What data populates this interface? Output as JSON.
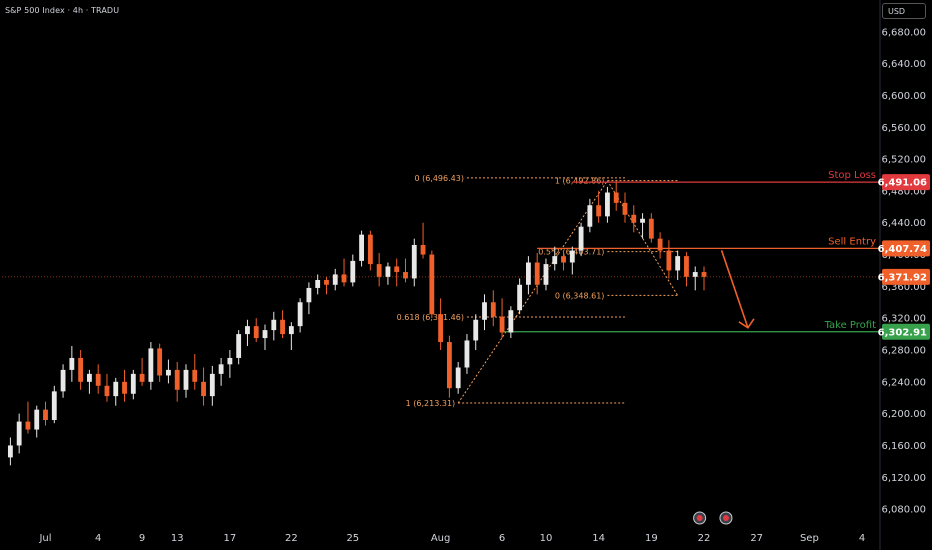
{
  "header": {
    "title": "S&P 500 Index · 4h · TRADU",
    "currency": "USD"
  },
  "colors": {
    "bg": "#000000",
    "up": "#e8e8e8",
    "down": "#f0602a",
    "stop": "#e03a3e",
    "entry": "#f0602a",
    "target": "#37a24b",
    "fib": "#f0a060",
    "axis_text": "#d1d4dc",
    "current": "#f0602a"
  },
  "chart_data": {
    "type": "candlestick",
    "y_range": [
      6060,
      6720
    ],
    "y_ticks": [
      "6,680.00",
      "6,640.00",
      "6,600.00",
      "6,560.00",
      "6,520.00",
      "6,480.00",
      "6,440.00",
      "6,400.00",
      "6,360.00",
      "6,320.00",
      "6,280.00",
      "6,240.00",
      "6,200.00",
      "6,160.00",
      "6,120.00",
      "6,080.00"
    ],
    "y_tick_values": [
      6680,
      6640,
      6600,
      6560,
      6520,
      6480,
      6440,
      6400,
      6360,
      6320,
      6280,
      6240,
      6200,
      6160,
      6120,
      6080
    ],
    "x_ticks": [
      {
        "label": "Jul",
        "i": 4
      },
      {
        "label": "4",
        "i": 10
      },
      {
        "label": "9",
        "i": 15
      },
      {
        "label": "13",
        "i": 19
      },
      {
        "label": "17",
        "i": 25
      },
      {
        "label": "22",
        "i": 32
      },
      {
        "label": "25",
        "i": 39
      },
      {
        "label": "Aug",
        "i": 49
      },
      {
        "label": "6",
        "i": 56
      },
      {
        "label": "10",
        "i": 61
      },
      {
        "label": "14",
        "i": 67
      },
      {
        "label": "19",
        "i": 73
      },
      {
        "label": "22",
        "i": 79
      },
      {
        "label": "27",
        "i": 85
      },
      {
        "label": "Sep",
        "i": 91
      },
      {
        "label": "4",
        "i": 97
      }
    ],
    "bars_count": 100,
    "last_index": 79,
    "candles": [
      [
        0,
        6145,
        6170,
        6135,
        6160
      ],
      [
        1,
        6160,
        6200,
        6150,
        6190
      ],
      [
        2,
        6190,
        6215,
        6175,
        6180
      ],
      [
        3,
        6180,
        6210,
        6170,
        6205
      ],
      [
        4,
        6205,
        6215,
        6185,
        6192
      ],
      [
        5,
        6192,
        6235,
        6188,
        6228
      ],
      [
        6,
        6228,
        6262,
        6220,
        6255
      ],
      [
        7,
        6255,
        6285,
        6240,
        6270
      ],
      [
        8,
        6270,
        6280,
        6230,
        6240
      ],
      [
        9,
        6240,
        6255,
        6225,
        6250
      ],
      [
        10,
        6250,
        6262,
        6225,
        6235
      ],
      [
        11,
        6235,
        6250,
        6215,
        6222
      ],
      [
        12,
        6222,
        6245,
        6210,
        6240
      ],
      [
        13,
        6240,
        6255,
        6215,
        6225
      ],
      [
        14,
        6225,
        6255,
        6218,
        6250
      ],
      [
        15,
        6250,
        6270,
        6235,
        6240
      ],
      [
        16,
        6240,
        6290,
        6230,
        6282
      ],
      [
        17,
        6282,
        6288,
        6240,
        6248
      ],
      [
        18,
        6248,
        6268,
        6238,
        6255
      ],
      [
        19,
        6255,
        6265,
        6215,
        6230
      ],
      [
        20,
        6230,
        6262,
        6220,
        6255
      ],
      [
        21,
        6255,
        6275,
        6230,
        6240
      ],
      [
        22,
        6240,
        6258,
        6210,
        6222
      ],
      [
        23,
        6222,
        6260,
        6210,
        6250
      ],
      [
        24,
        6250,
        6270,
        6235,
        6262
      ],
      [
        25,
        6262,
        6280,
        6245,
        6270
      ],
      [
        26,
        6270,
        6305,
        6262,
        6300
      ],
      [
        27,
        6300,
        6318,
        6285,
        6310
      ],
      [
        28,
        6310,
        6320,
        6290,
        6295
      ],
      [
        29,
        6295,
        6312,
        6280,
        6305
      ],
      [
        30,
        6305,
        6328,
        6292,
        6318
      ],
      [
        31,
        6318,
        6330,
        6295,
        6300
      ],
      [
        32,
        6300,
        6315,
        6280,
        6310
      ],
      [
        33,
        6310,
        6345,
        6302,
        6340
      ],
      [
        34,
        6340,
        6365,
        6325,
        6358
      ],
      [
        35,
        6358,
        6375,
        6350,
        6368
      ],
      [
        36,
        6368,
        6372,
        6350,
        6362
      ],
      [
        37,
        6362,
        6382,
        6355,
        6375
      ],
      [
        38,
        6375,
        6395,
        6360,
        6365
      ],
      [
        39,
        6365,
        6400,
        6360,
        6392
      ],
      [
        40,
        6392,
        6430,
        6385,
        6425
      ],
      [
        41,
        6425,
        6430,
        6380,
        6388
      ],
      [
        42,
        6388,
        6402,
        6360,
        6372
      ],
      [
        43,
        6372,
        6390,
        6362,
        6385
      ],
      [
        44,
        6385,
        6395,
        6360,
        6378
      ],
      [
        45,
        6378,
        6395,
        6365,
        6370
      ],
      [
        46,
        6370,
        6420,
        6360,
        6412
      ],
      [
        47,
        6412,
        6440,
        6395,
        6400
      ],
      [
        48,
        6400,
        6405,
        6320,
        6325
      ],
      [
        49,
        6325,
        6345,
        6280,
        6290
      ],
      [
        50,
        6290,
        6298,
        6220,
        6232
      ],
      [
        51,
        6232,
        6265,
        6225,
        6258
      ],
      [
        52,
        6258,
        6300,
        6250,
        6292
      ],
      [
        53,
        6292,
        6325,
        6280,
        6318
      ],
      [
        54,
        6318,
        6350,
        6305,
        6340
      ],
      [
        55,
        6340,
        6355,
        6310,
        6322
      ],
      [
        56,
        6322,
        6345,
        6295,
        6302
      ],
      [
        57,
        6302,
        6335,
        6295,
        6330
      ],
      [
        58,
        6330,
        6370,
        6325,
        6362
      ],
      [
        59,
        6362,
        6398,
        6350,
        6390
      ],
      [
        60,
        6390,
        6402,
        6350,
        6362
      ],
      [
        61,
        6362,
        6395,
        6355,
        6388
      ],
      [
        62,
        6388,
        6410,
        6380,
        6398
      ],
      [
        63,
        6398,
        6405,
        6380,
        6390
      ],
      [
        64,
        6390,
        6410,
        6375,
        6405
      ],
      [
        65,
        6405,
        6440,
        6398,
        6435
      ],
      [
        66,
        6435,
        6470,
        6428,
        6462
      ],
      [
        67,
        6462,
        6480,
        6440,
        6448
      ],
      [
        68,
        6448,
        6485,
        6440,
        6478
      ],
      [
        69,
        6478,
        6492,
        6455,
        6465
      ],
      [
        70,
        6465,
        6478,
        6440,
        6450
      ],
      [
        71,
        6450,
        6462,
        6428,
        6440
      ],
      [
        72,
        6440,
        6452,
        6420,
        6445
      ],
      [
        73,
        6445,
        6452,
        6415,
        6420
      ],
      [
        74,
        6420,
        6428,
        6395,
        6405
      ],
      [
        75,
        6405,
        6418,
        6370,
        6380
      ],
      [
        76,
        6380,
        6405,
        6368,
        6398
      ],
      [
        77,
        6398,
        6403,
        6360,
        6372
      ],
      [
        78,
        6372,
        6385,
        6355,
        6378
      ],
      [
        79,
        6378,
        6385,
        6355,
        6372
      ]
    ],
    "levels": [
      {
        "name": "Stop Loss",
        "value": 6491.06,
        "label": "6,491.06",
        "color": "#e03a3e",
        "x_start_i": 64
      },
      {
        "name": "Sell Entry",
        "value": 6407.74,
        "label": "6,407.74",
        "color": "#f0602a",
        "x_start_i": 60
      },
      {
        "name": "Take Profit",
        "value": 6302.91,
        "label": "6,302.91",
        "color": "#37a24b",
        "x_start_i": 56
      }
    ],
    "current_price": {
      "value": 6371.92,
      "label": "6,371.92"
    },
    "fib_left": {
      "high": {
        "text": "0 (6,496.43)",
        "value": 6496.43,
        "i": 52
      },
      "mid": {
        "text": "0.618 (6,321.46)",
        "value": 6321.46,
        "i": 52
      },
      "low": {
        "text": "1 (6,213.31)",
        "value": 6213.31,
        "i": 51
      }
    },
    "fib_right": {
      "top": {
        "text": "1 (6,492.86)",
        "value": 6492.86,
        "i": 68
      },
      "mid": {
        "text": "0.5*2 (6,403.71)",
        "value": 6403.71,
        "i": 68
      },
      "low": {
        "text": "0 (6,348.61)",
        "value": 6348.61,
        "i": 68
      }
    }
  }
}
